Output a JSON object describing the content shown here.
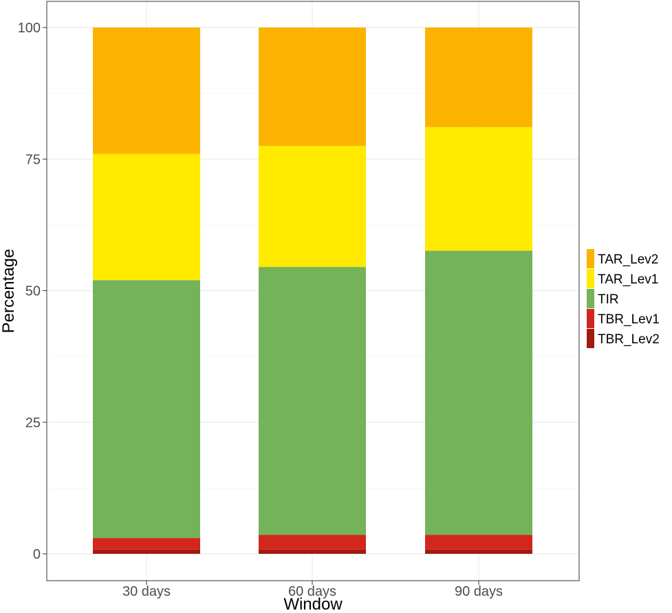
{
  "chart_data": {
    "type": "bar",
    "stacked": true,
    "orientation": "vertical",
    "categories": [
      "30 days",
      "60 days",
      "90 days"
    ],
    "xlabel": "Window",
    "ylabel": "Percentage",
    "ylim": [
      0,
      100
    ],
    "yticks": [
      0,
      25,
      50,
      75,
      100
    ],
    "grid": true,
    "legend_position": "right",
    "series": [
      {
        "name": "TBR_Lev2",
        "color": "#A31A0E",
        "values": [
          0.8,
          0.8,
          0.8
        ]
      },
      {
        "name": "TBR_Lev1",
        "color": "#D2271D",
        "values": [
          2.2,
          2.8,
          2.8
        ]
      },
      {
        "name": "TIR",
        "color": "#74B359",
        "values": [
          49.0,
          50.9,
          54.0
        ]
      },
      {
        "name": "TAR_Lev1",
        "color": "#FFEA00",
        "values": [
          24.0,
          23.0,
          23.5
        ]
      },
      {
        "name": "TAR_Lev2",
        "color": "#FBB300",
        "values": [
          24.0,
          22.5,
          18.9
        ]
      }
    ],
    "legend_order": [
      "TAR_Lev2",
      "TAR_Lev1",
      "TIR",
      "TBR_Lev1",
      "TBR_Lev2"
    ]
  }
}
